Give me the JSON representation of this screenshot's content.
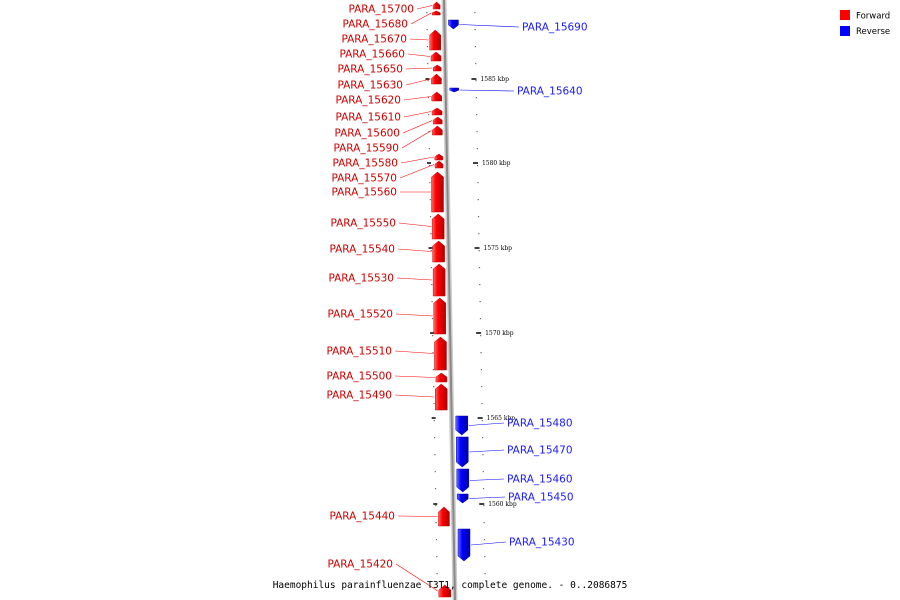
{
  "title": "Haemophilus parainfluenzae T3T1, complete genome. - 0..2086875",
  "legend": [
    {
      "label": "Forward",
      "color": "#ff0000"
    },
    {
      "label": "Reverse",
      "color": "#0000ff"
    }
  ],
  "colors": {
    "forward": "#ff0000",
    "reverse": "#0000ff",
    "backbone": "#888888"
  },
  "scale_ticks": [
    "1585 kbp",
    "1580 kbp",
    "1575 kbp",
    "1570 kbp",
    "1565 kbp",
    "1560 kbp"
  ],
  "forward_genes": [
    "PARA_15700",
    "PARA_15680",
    "PARA_15670",
    "PARA_15660",
    "PARA_15650",
    "PARA_15630",
    "PARA_15620",
    "PARA_15610",
    "PARA_15600",
    "PARA_15590",
    "PARA_15580",
    "PARA_15570",
    "PARA_15560",
    "PARA_15550",
    "PARA_15540",
    "PARA_15530",
    "PARA_15520",
    "PARA_15510",
    "PARA_15500",
    "PARA_15490",
    "PARA_15440",
    "PARA_15420"
  ],
  "reverse_genes": [
    "PARA_15690",
    "PARA_15640",
    "PARA_15480",
    "PARA_15470",
    "PARA_15460",
    "PARA_15450",
    "PARA_15430"
  ]
}
